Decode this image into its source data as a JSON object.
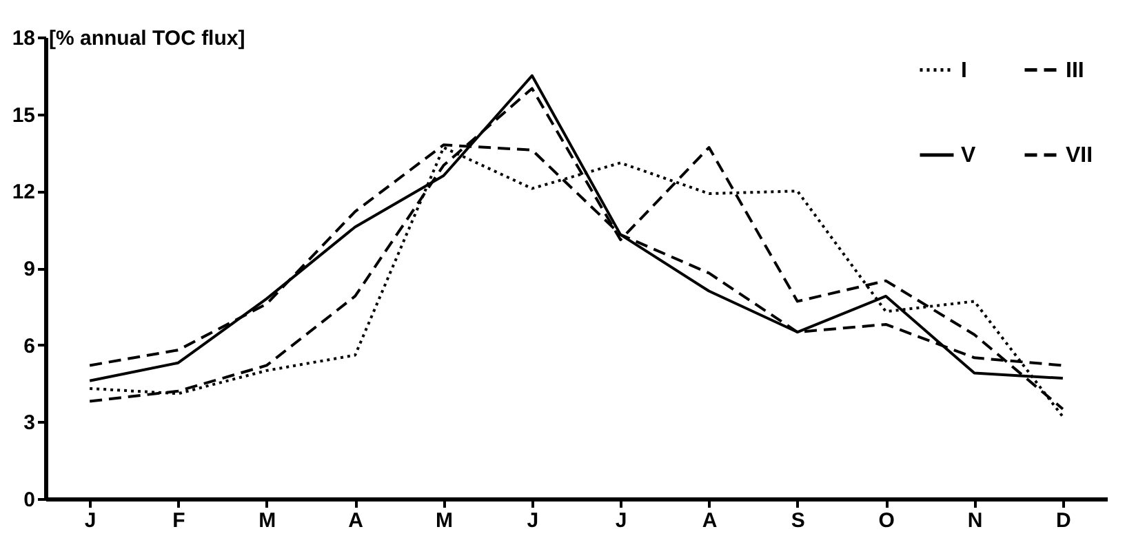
{
  "chart_data": {
    "type": "line",
    "ylabel": "[% annual TOC flux]",
    "categories": [
      "J",
      "F",
      "M",
      "A",
      "M",
      "J",
      "J",
      "A",
      "S",
      "O",
      "N",
      "D"
    ],
    "series": [
      {
        "name": "I",
        "color": "#000000",
        "line_style": "dotted",
        "values": [
          4.3,
          4.1,
          5.0,
          5.6,
          13.7,
          12.1,
          13.1,
          11.9,
          12.0,
          7.3,
          7.7,
          3.2
        ]
      },
      {
        "name": "III",
        "color": "#000000",
        "line_style": "dashed",
        "values": [
          3.8,
          4.2,
          5.2,
          7.9,
          13.0,
          16.0,
          10.1,
          13.7,
          7.7,
          8.5,
          6.4,
          3.5
        ]
      },
      {
        "name": "V",
        "color": "#000000",
        "line_style": "solid",
        "values": [
          4.6,
          5.3,
          7.8,
          10.6,
          12.6,
          16.5,
          10.3,
          8.1,
          6.5,
          7.9,
          4.9,
          4.7
        ]
      },
      {
        "name": "VII",
        "color": "#000000",
        "line_style": "dashed",
        "values": [
          5.2,
          5.8,
          7.6,
          11.2,
          13.8,
          13.6,
          10.3,
          8.8,
          6.5,
          6.8,
          5.5,
          5.2
        ]
      }
    ],
    "ylim": [
      0,
      18
    ],
    "yticks": [
      0,
      3,
      6,
      9,
      12,
      15,
      18
    ],
    "grid": false,
    "legend": "top right",
    "marker": "none"
  }
}
